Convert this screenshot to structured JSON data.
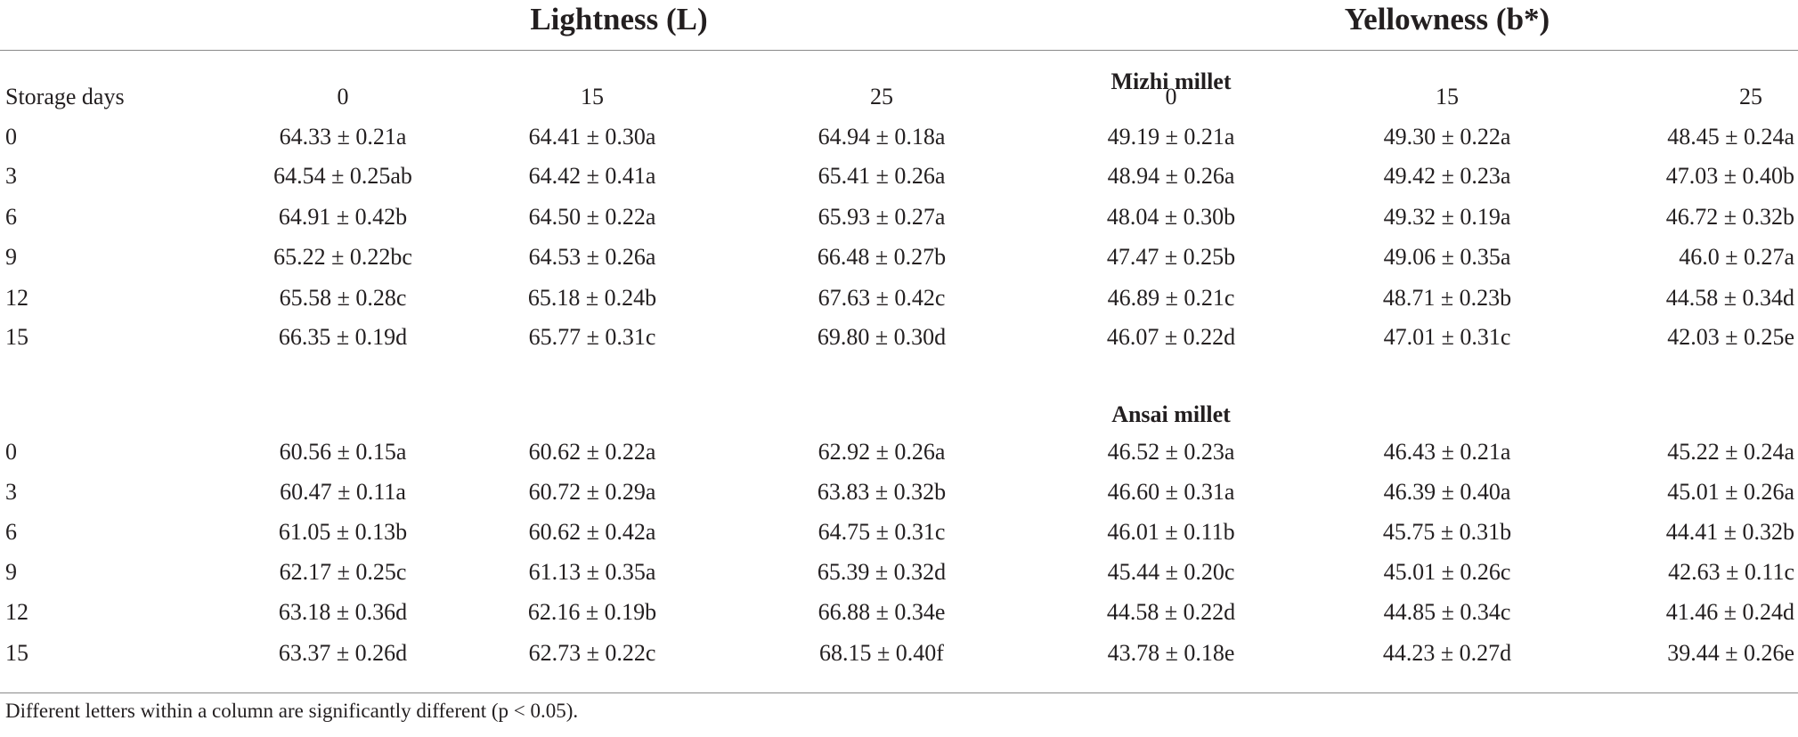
{
  "table": {
    "group_headers": {
      "lightness": "Lightness (L)",
      "yellowness": "Yellowness (b*)"
    },
    "column_headers": [
      "Storage days",
      "0",
      "15",
      "25",
      "0",
      "15",
      "25"
    ],
    "sections": [
      {
        "title": "Mizhi millet",
        "rows": [
          [
            "0",
            "64.33 ± 0.21a",
            "64.41 ± 0.30a",
            "64.94 ± 0.18a",
            "49.19 ± 0.21a",
            "49.30 ± 0.22a",
            "48.45 ± 0.24a"
          ],
          [
            "3",
            "64.54 ± 0.25ab",
            "64.42 ± 0.41a",
            "65.41 ± 0.26a",
            "48.94 ± 0.26a",
            "49.42 ± 0.23a",
            "47.03 ± 0.40b"
          ],
          [
            "6",
            "64.91 ± 0.42b",
            "64.50 ± 0.22a",
            "65.93 ± 0.27a",
            "48.04 ± 0.30b",
            "49.32 ± 0.19a",
            "46.72 ± 0.32b"
          ],
          [
            "9",
            "65.22 ± 0.22bc",
            "64.53 ± 0.26a",
            "66.48 ± 0.27b",
            "47.47 ± 0.25b",
            "49.06 ± 0.35a",
            "46.0 ± 0.27a"
          ],
          [
            "12",
            "65.58 ± 0.28c",
            "65.18 ± 0.24b",
            "67.63 ± 0.42c",
            "46.89 ± 0.21c",
            "48.71 ± 0.23b",
            "44.58 ± 0.34d"
          ],
          [
            "15",
            "66.35 ± 0.19d",
            "65.77 ± 0.31c",
            "69.80 ± 0.30d",
            "46.07 ± 0.22d",
            "47.01 ± 0.31c",
            "42.03 ± 0.25e"
          ]
        ]
      },
      {
        "title": "Ansai millet",
        "rows": [
          [
            "0",
            "60.56 ± 0.15a",
            "60.62 ± 0.22a",
            "62.92 ± 0.26a",
            "46.52 ± 0.23a",
            "46.43 ± 0.21a",
            "45.22 ± 0.24a"
          ],
          [
            "3",
            "60.47 ± 0.11a",
            "60.72 ± 0.29a",
            "63.83 ± 0.32b",
            "46.60 ± 0.31a",
            "46.39 ± 0.40a",
            "45.01 ± 0.26a"
          ],
          [
            "6",
            "61.05 ± 0.13b",
            "60.62 ± 0.42a",
            "64.75 ± 0.31c",
            "46.01 ± 0.11b",
            "45.75 ± 0.31b",
            "44.41 ± 0.32b"
          ],
          [
            "9",
            "62.17 ± 0.25c",
            "61.13 ± 0.35a",
            "65.39 ± 0.32d",
            "45.44 ± 0.20c",
            "45.01 ± 0.26c",
            "42.63 ± 0.11c"
          ],
          [
            "12",
            "63.18 ± 0.36d",
            "62.16 ± 0.19b",
            "66.88 ± 0.34e",
            "44.58 ± 0.22d",
            "44.85 ± 0.34c",
            "41.46 ± 0.24d"
          ],
          [
            "15",
            "63.37 ± 0.26d",
            "62.73 ± 0.22c",
            "68.15 ± 0.40f",
            "43.78 ± 0.18e",
            "44.23 ± 0.27d",
            "39.44 ± 0.26e"
          ]
        ]
      }
    ],
    "footnote": "Different letters within a column are significantly different (p < 0.05)."
  },
  "colors": {
    "text": "#231f20",
    "rule": "#8a8a8a",
    "background": "#ffffff"
  }
}
